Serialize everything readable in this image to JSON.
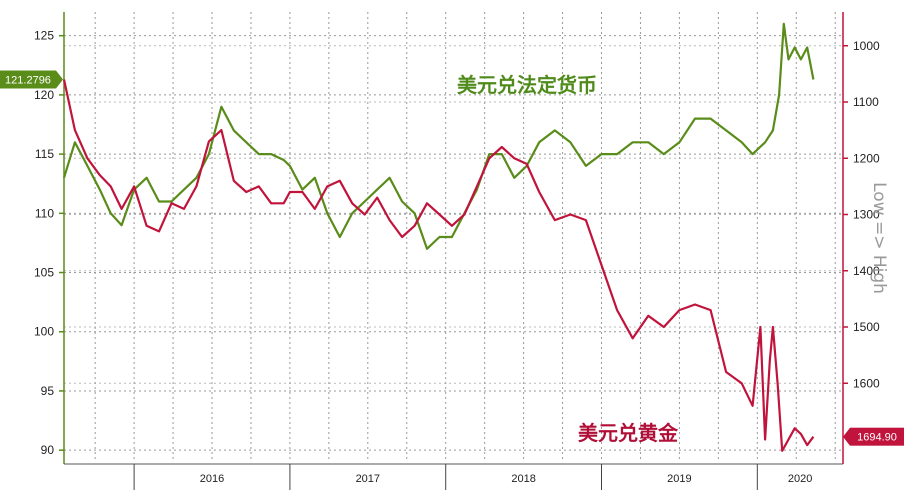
{
  "chart_data": {
    "type": "line",
    "x_ticks": [
      "2016",
      "2017",
      "2018",
      "2019",
      "2020"
    ],
    "left_axis": {
      "ticks": [
        125,
        120,
        115,
        110,
        105,
        100,
        95,
        90
      ],
      "range": [
        89,
        127
      ]
    },
    "right_axis": {
      "ticks": [
        1000,
        1100,
        1200,
        1300,
        1400,
        1500,
        1600
      ],
      "range": [
        1740,
        940
      ],
      "inverted": true,
      "label": "Low => High"
    },
    "grid": true,
    "series": [
      {
        "name": "美元兑法定货币",
        "axis": "left",
        "color": "#5a8c1a",
        "last_value": "121.2796",
        "x": [
          2015.55,
          2015.62,
          2015.7,
          2015.78,
          2015.85,
          2015.92,
          2016.0,
          2016.08,
          2016.16,
          2016.24,
          2016.32,
          2016.4,
          2016.48,
          2016.56,
          2016.64,
          2016.72,
          2016.8,
          2016.88,
          2016.96,
          2017.0,
          2017.08,
          2017.16,
          2017.24,
          2017.32,
          2017.4,
          2017.48,
          2017.56,
          2017.64,
          2017.72,
          2017.8,
          2017.88,
          2017.96,
          2018.04,
          2018.12,
          2018.2,
          2018.28,
          2018.36,
          2018.44,
          2018.52,
          2018.6,
          2018.7,
          2018.8,
          2018.9,
          2019.0,
          2019.1,
          2019.2,
          2019.3,
          2019.4,
          2019.5,
          2019.6,
          2019.7,
          2019.8,
          2019.9,
          2019.97,
          2020.05,
          2020.1,
          2020.14,
          2020.17,
          2020.2,
          2020.24,
          2020.28,
          2020.32,
          2020.36
        ],
        "y": [
          113,
          116,
          114,
          112,
          110,
          109,
          112,
          113,
          111,
          111,
          112,
          113,
          115,
          119,
          117,
          116,
          115,
          115,
          114.5,
          114,
          112,
          113,
          110,
          108,
          110,
          111,
          112,
          113,
          111,
          110,
          107,
          108,
          108,
          110,
          112,
          115,
          115,
          113,
          114,
          116,
          117,
          116,
          114,
          115,
          115,
          116,
          116,
          115,
          116,
          118,
          118,
          117,
          116,
          115,
          116,
          117,
          120,
          126,
          123,
          124,
          123,
          124,
          121.3
        ]
      },
      {
        "name": "美元兑黄金",
        "axis": "right",
        "color": "#c0143c",
        "last_value": "1694.90",
        "x": [
          2015.55,
          2015.62,
          2015.7,
          2015.78,
          2015.85,
          2015.92,
          2016.0,
          2016.08,
          2016.16,
          2016.24,
          2016.32,
          2016.4,
          2016.48,
          2016.56,
          2016.64,
          2016.72,
          2016.8,
          2016.88,
          2016.96,
          2017.0,
          2017.08,
          2017.16,
          2017.24,
          2017.32,
          2017.4,
          2017.48,
          2017.56,
          2017.64,
          2017.72,
          2017.8,
          2017.88,
          2017.96,
          2018.04,
          2018.12,
          2018.2,
          2018.28,
          2018.36,
          2018.44,
          2018.52,
          2018.6,
          2018.7,
          2018.8,
          2018.9,
          2019.0,
          2019.1,
          2019.2,
          2019.3,
          2019.4,
          2019.5,
          2019.6,
          2019.7,
          2019.8,
          2019.9,
          2019.97,
          2020.02,
          2020.05,
          2020.08,
          2020.1,
          2020.13,
          2020.16,
          2020.2,
          2020.24,
          2020.28,
          2020.32,
          2020.36
        ],
        "y": [
          1060,
          1150,
          1200,
          1230,
          1250,
          1290,
          1250,
          1320,
          1330,
          1280,
          1290,
          1250,
          1170,
          1150,
          1240,
          1260,
          1250,
          1280,
          1280,
          1260,
          1260,
          1290,
          1250,
          1240,
          1280,
          1300,
          1270,
          1310,
          1340,
          1320,
          1280,
          1300,
          1320,
          1300,
          1250,
          1200,
          1180,
          1200,
          1210,
          1260,
          1310,
          1300,
          1310,
          1390,
          1470,
          1520,
          1480,
          1500,
          1470,
          1460,
          1470,
          1580,
          1600,
          1640,
          1500,
          1700,
          1560,
          1500,
          1600,
          1720,
          1700,
          1680,
          1690,
          1710,
          1695
        ]
      }
    ]
  }
}
